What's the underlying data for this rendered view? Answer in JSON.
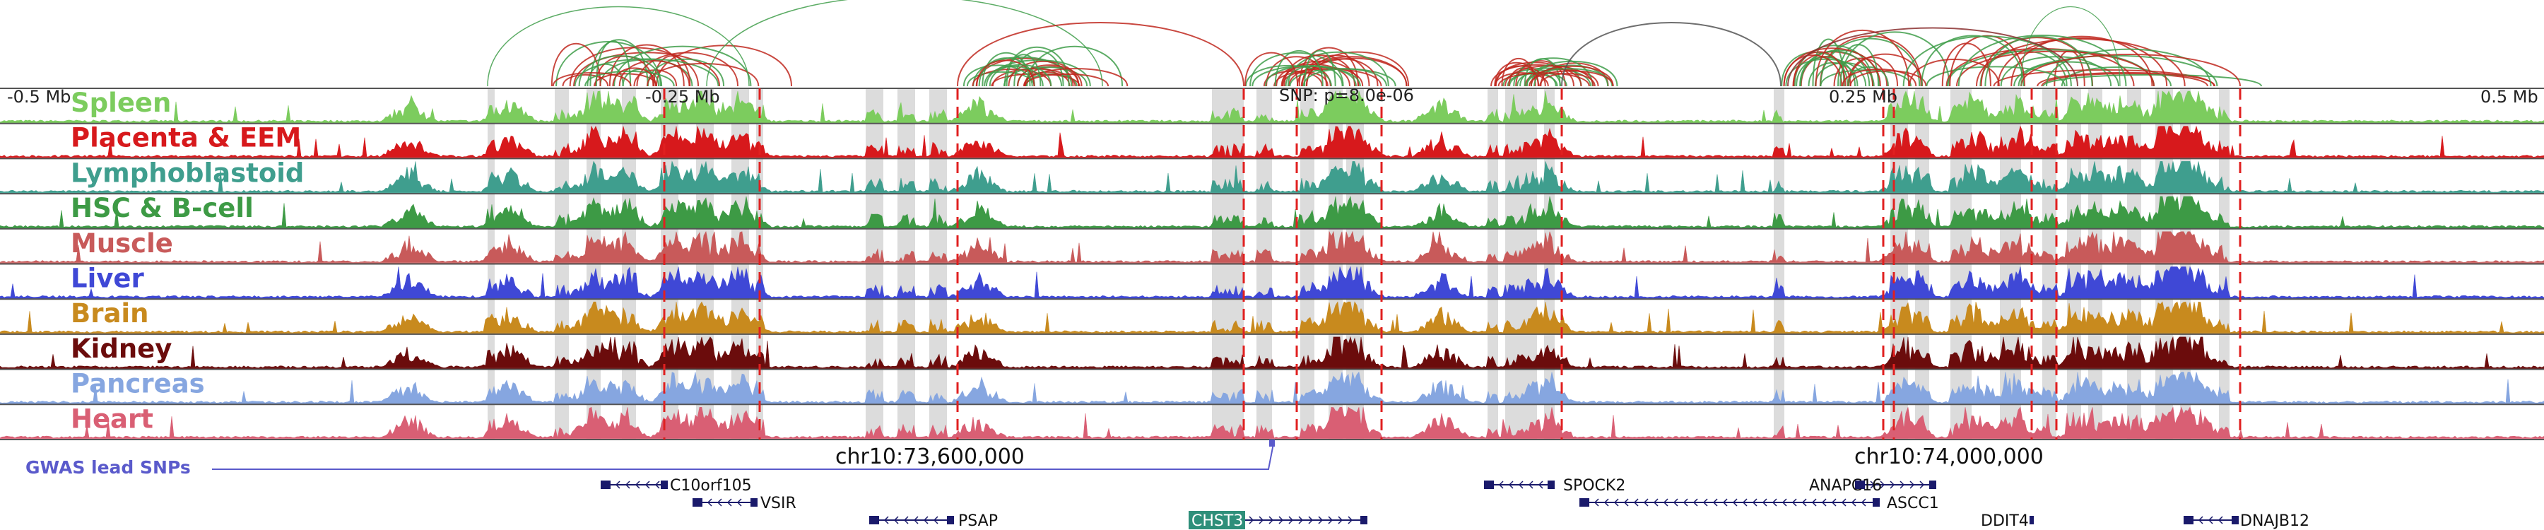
{
  "scale": {
    "left_label": "-0.5 Mb",
    "left_mid_label": "-0.25 Mb",
    "snp_label": "SNP: p=8.0e-06",
    "right_mid_label": "0.25 Mb",
    "right_label": "0.5 Mb"
  },
  "coordinates": {
    "left": "chr10:73,600,000",
    "right": "chr10:74,000,000"
  },
  "gwas_label": "GWAS lead SNPs",
  "tracks": [
    {
      "name": "Spleen",
      "color": "#7ccc5e"
    },
    {
      "name": "Placenta & EEM",
      "color": "#d7191c"
    },
    {
      "name": "Lymphoblastoid",
      "color": "#3f9e8e"
    },
    {
      "name": "HSC & B-cell",
      "color": "#3d9a45"
    },
    {
      "name": "Muscle",
      "color": "#c85a5a"
    },
    {
      "name": "Liver",
      "color": "#3f48d6"
    },
    {
      "name": "Brain",
      "color": "#c88a1e"
    },
    {
      "name": "Kidney",
      "color": "#6b0c0c"
    },
    {
      "name": "Pancreas",
      "color": "#86a6e0"
    },
    {
      "name": "Heart",
      "color": "#d95f74"
    }
  ],
  "genes": [
    {
      "name": "C10orf105"
    },
    {
      "name": "VSIR"
    },
    {
      "name": "PSAP"
    },
    {
      "name": "CHST3"
    },
    {
      "name": "SPOCK2"
    },
    {
      "name": "ANAPC16"
    },
    {
      "name": "ASCC1"
    },
    {
      "name": "DDIT4"
    },
    {
      "name": "DNAJB12"
    }
  ],
  "colors": {
    "arc_red": "#c0281e",
    "arc_green": "#3f9e4a",
    "snp_line": "#5a5acb",
    "highlight": "#dcdcdc",
    "snp_dash": "#e02020",
    "gene": "#1a1a6b",
    "chst3_box": "#2e8f7a"
  }
}
